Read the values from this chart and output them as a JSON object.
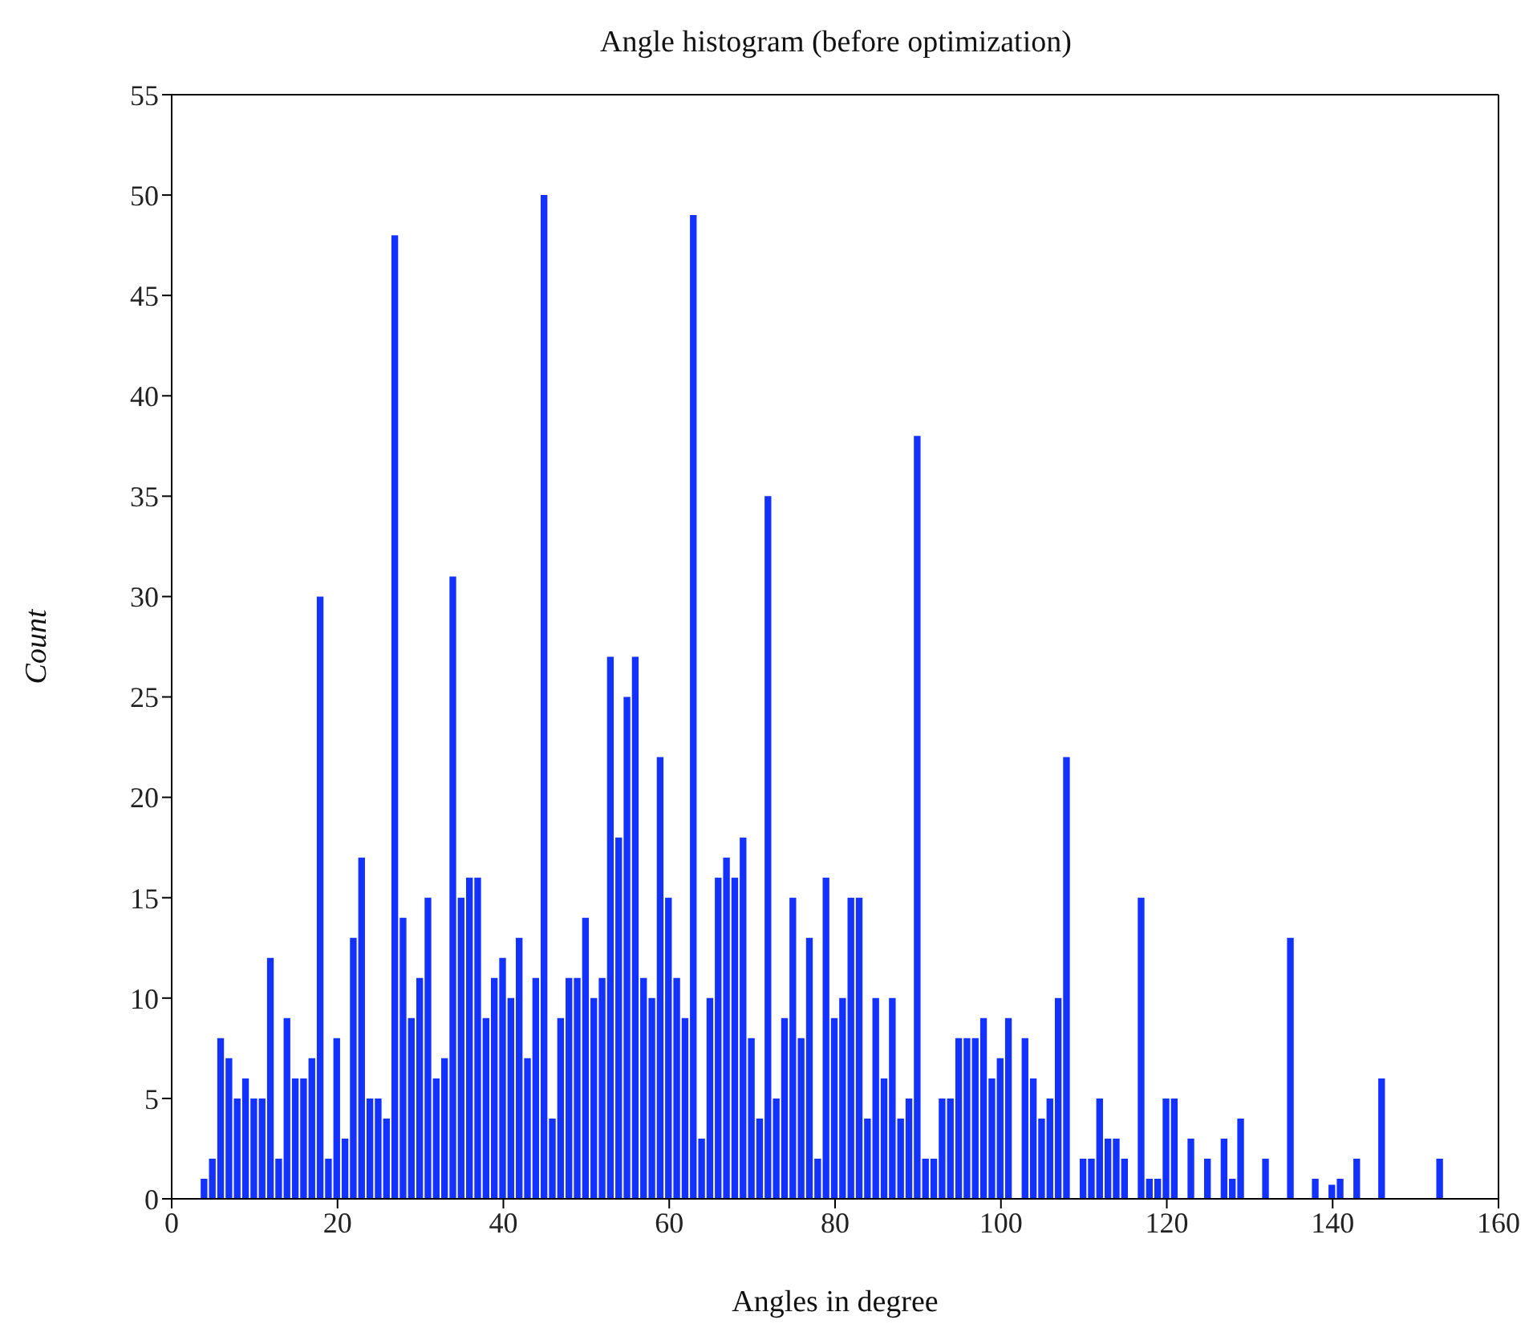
{
  "chart_data": {
    "type": "histogram",
    "title": "Angle histogram (before optimization)",
    "xlabel": "Angles in degree",
    "ylabel": "Count",
    "color": "#1432ff",
    "bins": [
      3.5,
      4.5,
      5.5,
      6.5,
      7.5,
      8.5,
      9.5,
      10.5,
      11.5,
      12.5,
      13.5,
      14.5,
      15.5,
      16.5,
      17.5,
      18.5,
      19.5,
      20.5,
      21.5,
      22.5,
      23.5,
      24.5,
      25.5,
      26.5,
      27.5,
      28.5,
      29.5,
      30.5,
      31.5,
      32.5,
      33.5,
      34.5,
      35.5,
      36.5,
      37.5,
      38.5,
      39.5,
      40.5,
      41.5,
      42.5,
      43.5,
      44.5,
      45.5,
      46.5,
      47.5,
      48.5,
      49.5,
      50.5,
      51.5,
      52.5,
      53.5,
      54.5,
      55.5,
      56.5,
      57.5,
      58.5,
      59.5,
      60.5,
      61.5,
      62.5,
      63.5,
      64.5,
      65.5,
      66.5,
      67.5,
      68.5,
      69.5,
      70.5,
      71.5,
      72.5,
      73.5,
      74.5,
      75.5,
      76.5,
      77.5,
      78.5,
      79.5,
      80.5,
      81.5,
      82.5,
      83.5,
      84.5,
      85.5,
      86.5,
      87.5,
      88.5,
      89.5,
      90.5,
      91.5,
      92.5,
      93.5,
      94.5,
      95.5,
      96.5,
      97.5,
      98.5,
      99.5,
      100.5,
      101.5,
      102.5,
      103.5,
      104.5,
      105.5,
      106.5,
      107.5,
      108.5,
      109.5,
      110.5,
      111.5,
      112.5,
      113.5,
      114.5,
      115.5,
      116.5,
      117.5,
      118.5,
      119.5,
      120.5,
      121.5,
      122.5,
      123.5,
      124.5,
      125.5,
      126.5,
      127.5,
      128.5,
      129.5,
      130.5,
      131.5,
      132.5,
      133.5,
      134.5,
      135.5,
      136.5,
      137.5,
      138.5,
      139.5,
      140.5,
      141.5,
      142.5,
      143.5,
      144.5,
      145.5,
      146.5,
      147.5,
      148.5,
      149.5,
      150.5,
      151.5,
      152.5,
      153.5
    ],
    "values": [
      1,
      2,
      8,
      7,
      5,
      6,
      5,
      5,
      12,
      2,
      9,
      6,
      6,
      7,
      30,
      2,
      8,
      3,
      13,
      17,
      5,
      5,
      4,
      48,
      14,
      9,
      11,
      15,
      6,
      7,
      31,
      15,
      16,
      16,
      9,
      11,
      12,
      10,
      13,
      7,
      11,
      50,
      4,
      9,
      11,
      11,
      14,
      10,
      11,
      27,
      18,
      25,
      27,
      11,
      10,
      22,
      15,
      11,
      9,
      49,
      3,
      10,
      16,
      17,
      16,
      18,
      8,
      4,
      35,
      5,
      9,
      15,
      8,
      13,
      2,
      16,
      9,
      10,
      15,
      15,
      4,
      10,
      6,
      10,
      4,
      5,
      38,
      2,
      2,
      5,
      5,
      8,
      8,
      8,
      9,
      6,
      7,
      9,
      0,
      8,
      6,
      4,
      5,
      10,
      22,
      0,
      2,
      2,
      5,
      3,
      3,
      2,
      0,
      15,
      1,
      1,
      5,
      5,
      0,
      3,
      0,
      2,
      0,
      3,
      1,
      4,
      0,
      0,
      2,
      0,
      0,
      13,
      0,
      0,
      1,
      0,
      0.7,
      1,
      0,
      2,
      0,
      0,
      6,
      0,
      0,
      0,
      0,
      0,
      0,
      2
    ],
    "xlim": [
      0,
      160
    ],
    "xticks": [
      0,
      20,
      40,
      60,
      80,
      100,
      120,
      140,
      160
    ],
    "ylim": [
      0,
      55
    ],
    "yticks": [
      0,
      5,
      10,
      15,
      20,
      25,
      30,
      35,
      40,
      45,
      50,
      55
    ]
  }
}
